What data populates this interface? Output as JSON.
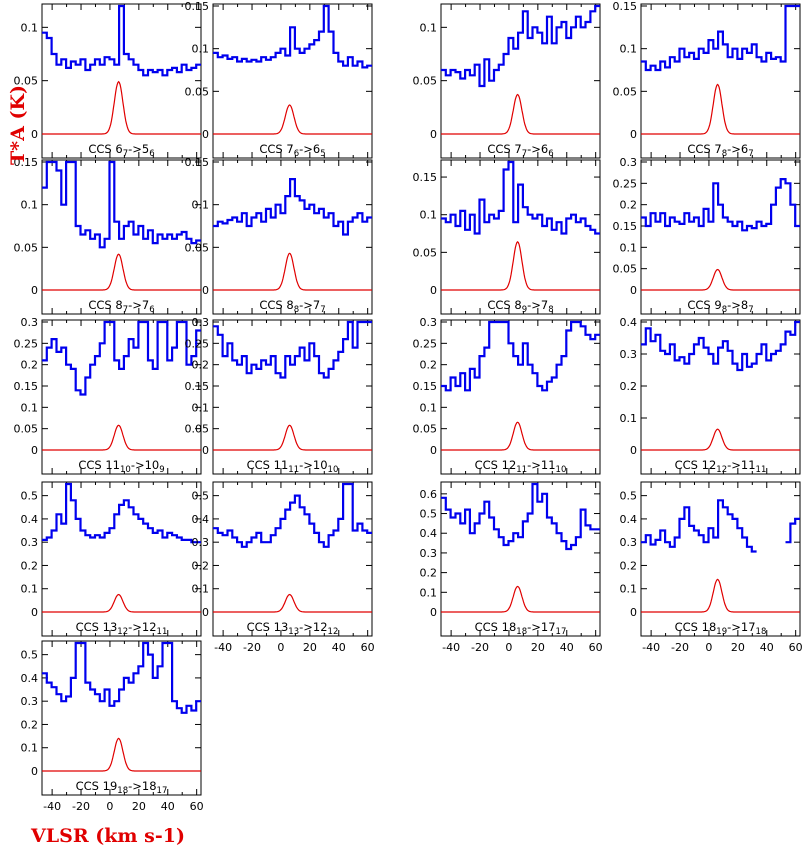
{
  "chart_data": {
    "type": "line",
    "ylabel": "T*A (K)",
    "xlabel": "VLSR (km s-1)",
    "xlim": [
      -47,
      63
    ],
    "xticks": [
      -40,
      -20,
      0,
      20,
      40,
      60
    ],
    "colors": {
      "observed": "#0000ee",
      "model": "#e00000"
    },
    "panels": [
      {
        "label": "CCS 67->56",
        "t": [
          "CCS 6",
          "7",
          "->5",
          "6"
        ],
        "ylim": [
          -0.01,
          0.12
        ],
        "yticks": [
          0,
          0.05,
          0.1
        ],
        "model_peak": 0.049,
        "obs": [
          0.095,
          0.09,
          0.075,
          0.065,
          0.07,
          0.062,
          0.068,
          0.065,
          0.07,
          0.06,
          0.065,
          0.07,
          0.065,
          0.072,
          0.07,
          0.065,
          0.12,
          0.075,
          0.07,
          0.065,
          0.06,
          0.055,
          0.06,
          0.058,
          0.06,
          0.055,
          0.06,
          0.062,
          0.058,
          0.065,
          0.06,
          0.062,
          0.065
        ]
      },
      {
        "label": "CCS 76->65",
        "t": [
          "CCS 7",
          "6",
          "->6",
          "5"
        ],
        "ylim": [
          -0.01,
          0.15
        ],
        "yticks": [
          0,
          0.05,
          0.1,
          0.15
        ],
        "model_peak": 0.034,
        "obs": [
          0.095,
          0.09,
          0.092,
          0.088,
          0.09,
          0.085,
          0.088,
          0.085,
          0.087,
          0.085,
          0.09,
          0.087,
          0.09,
          0.095,
          0.1,
          0.092,
          0.125,
          0.1,
          0.095,
          0.1,
          0.105,
          0.11,
          0.12,
          0.15,
          0.12,
          0.095,
          0.085,
          0.08,
          0.09,
          0.08,
          0.085,
          0.078,
          0.08
        ]
      },
      {
        "label": "CCS 77->66",
        "t": [
          "CCS 7",
          "7",
          "->6",
          "6"
        ],
        "ylim": [
          -0.01,
          0.12
        ],
        "yticks": [
          0,
          0.05,
          0.1
        ],
        "model_peak": 0.037,
        "obs": [
          0.06,
          0.055,
          0.06,
          0.058,
          0.052,
          0.06,
          0.055,
          0.065,
          0.045,
          0.07,
          0.05,
          0.06,
          0.065,
          0.075,
          0.09,
          0.08,
          0.095,
          0.115,
          0.09,
          0.1,
          0.095,
          0.085,
          0.11,
          0.085,
          0.1,
          0.105,
          0.09,
          0.1,
          0.11,
          0.1,
          0.105,
          0.115,
          0.12
        ]
      },
      {
        "label": "CCS 78->67",
        "t": [
          "CCS 7",
          "8",
          "->6",
          "7"
        ],
        "ylim": [
          -0.01,
          0.15
        ],
        "yticks": [
          0,
          0.05,
          0.1,
          0.15
        ],
        "model_peak": 0.058,
        "obs": [
          0.085,
          0.075,
          0.08,
          0.075,
          0.085,
          0.078,
          0.09,
          0.085,
          0.1,
          0.09,
          0.095,
          0.088,
          0.1,
          0.095,
          0.11,
          0.1,
          0.12,
          0.105,
          0.09,
          0.1,
          0.088,
          0.1,
          0.095,
          0.105,
          0.09,
          0.085,
          0.095,
          0.088,
          0.09,
          0.085,
          0.15,
          0.15,
          0.15
        ]
      },
      {
        "label": "CCS 87->76",
        "t": [
          "CCS 8",
          "7",
          "->7",
          "6"
        ],
        "ylim": [
          -0.01,
          0.15
        ],
        "yticks": [
          0,
          0.05,
          0.1,
          0.15
        ],
        "model_peak": 0.042,
        "obs": [
          0.12,
          0.15,
          0.15,
          0.14,
          0.1,
          0.15,
          0.15,
          0.075,
          0.065,
          0.07,
          0.06,
          0.065,
          0.05,
          0.06,
          0.15,
          0.08,
          0.06,
          0.075,
          0.08,
          0.065,
          0.075,
          0.06,
          0.07,
          0.055,
          0.065,
          0.06,
          0.065,
          0.06,
          0.065,
          0.068,
          0.06,
          0.055,
          0.058
        ]
      },
      {
        "label": "CCS 88->77",
        "t": [
          "CCS 8",
          "8",
          "->7",
          "7"
        ],
        "ylim": [
          -0.01,
          0.15
        ],
        "yticks": [
          0,
          0.05,
          0.1,
          0.15
        ],
        "model_peak": 0.043,
        "obs": [
          0.075,
          0.08,
          0.078,
          0.082,
          0.085,
          0.08,
          0.09,
          0.075,
          0.085,
          0.09,
          0.08,
          0.095,
          0.085,
          0.1,
          0.09,
          0.11,
          0.13,
          0.11,
          0.105,
          0.095,
          0.1,
          0.09,
          0.095,
          0.085,
          0.09,
          0.075,
          0.08,
          0.065,
          0.08,
          0.085,
          0.09,
          0.08,
          0.085
        ]
      },
      {
        "label": "CCS 89->78",
        "t": [
          "CCS 8",
          "9",
          "->7",
          "8"
        ],
        "ylim": [
          -0.01,
          0.17
        ],
        "yticks": [
          0,
          0.05,
          0.1,
          0.15
        ],
        "model_peak": 0.064,
        "obs": [
          0.095,
          0.09,
          0.1,
          0.085,
          0.105,
          0.08,
          0.1,
          0.075,
          0.12,
          0.09,
          0.1,
          0.095,
          0.105,
          0.16,
          0.17,
          0.09,
          0.14,
          0.11,
          0.1,
          0.095,
          0.1,
          0.085,
          0.095,
          0.08,
          0.09,
          0.075,
          0.095,
          0.1,
          0.09,
          0.095,
          0.085,
          0.08,
          0.075
        ]
      },
      {
        "label": "CCS 98->87",
        "t": [
          "CCS 9",
          "8",
          "->8",
          "7"
        ],
        "ylim": [
          -0.01,
          0.3
        ],
        "yticks": [
          0,
          0.05,
          0.1,
          0.15,
          0.2,
          0.25,
          0.3
        ],
        "model_peak": 0.048,
        "obs": [
          0.17,
          0.15,
          0.18,
          0.16,
          0.18,
          0.15,
          0.17,
          0.16,
          0.155,
          0.18,
          0.16,
          0.17,
          0.15,
          0.19,
          0.16,
          0.25,
          0.2,
          0.17,
          0.16,
          0.15,
          0.16,
          0.14,
          0.15,
          0.145,
          0.16,
          0.15,
          0.155,
          0.2,
          0.24,
          0.26,
          0.25,
          0.2,
          0.15
        ]
      },
      {
        "label": "CCS 1110->109",
        "t": [
          "CCS 11",
          "10",
          "->10",
          "9"
        ],
        "ylim": [
          -0.02,
          0.3
        ],
        "yticks": [
          0,
          0.05,
          0.1,
          0.15,
          0.2,
          0.25,
          0.3
        ],
        "model_peak": 0.058,
        "obs": [
          0.21,
          0.24,
          0.26,
          0.23,
          0.24,
          0.2,
          0.19,
          0.14,
          0.13,
          0.17,
          0.2,
          0.22,
          0.25,
          0.3,
          0.3,
          0.21,
          0.19,
          0.22,
          0.26,
          0.24,
          0.3,
          0.3,
          0.21,
          0.19,
          0.3,
          0.3,
          0.21,
          0.24,
          0.3,
          0.3,
          0.2,
          0.22,
          0.28
        ]
      },
      {
        "label": "CCS 1111->1010",
        "t": [
          "CCS 11",
          "11",
          "->10",
          "10"
        ],
        "ylim": [
          -0.02,
          0.3
        ],
        "yticks": [
          0,
          0.05,
          0.1,
          0.15,
          0.2,
          0.25,
          0.3
        ],
        "model_peak": 0.058,
        "obs": [
          0.29,
          0.27,
          0.22,
          0.25,
          0.21,
          0.2,
          0.22,
          0.18,
          0.2,
          0.19,
          0.21,
          0.2,
          0.22,
          0.18,
          0.17,
          0.22,
          0.2,
          0.22,
          0.24,
          0.21,
          0.25,
          0.22,
          0.18,
          0.17,
          0.19,
          0.21,
          0.23,
          0.26,
          0.3,
          0.24,
          0.3,
          0.3,
          0.3
        ]
      },
      {
        "label": "CCS 1211->1110",
        "t": [
          "CCS 12",
          "11",
          "->11",
          "10"
        ],
        "ylim": [
          -0.02,
          0.3
        ],
        "yticks": [
          0,
          0.05,
          0.1,
          0.15,
          0.2,
          0.25,
          0.3
        ],
        "model_peak": 0.065,
        "obs": [
          0.15,
          0.14,
          0.17,
          0.15,
          0.18,
          0.14,
          0.19,
          0.17,
          0.22,
          0.24,
          0.3,
          0.3,
          0.3,
          0.3,
          0.25,
          0.22,
          0.2,
          0.25,
          0.2,
          0.18,
          0.15,
          0.14,
          0.16,
          0.17,
          0.2,
          0.22,
          0.28,
          0.3,
          0.3,
          0.29,
          0.27,
          0.26,
          0.27
        ]
      },
      {
        "label": "CCS 1212->1111",
        "t": [
          "CCS 12",
          "12",
          "->11",
          "11"
        ],
        "ylim": [
          -0.02,
          0.4
        ],
        "yticks": [
          0,
          0.1,
          0.2,
          0.3,
          0.4
        ],
        "model_peak": 0.065,
        "obs": [
          0.33,
          0.38,
          0.34,
          0.36,
          0.31,
          0.3,
          0.33,
          0.28,
          0.29,
          0.27,
          0.3,
          0.33,
          0.35,
          0.32,
          0.3,
          0.27,
          0.32,
          0.34,
          0.31,
          0.27,
          0.25,
          0.3,
          0.26,
          0.27,
          0.3,
          0.33,
          0.28,
          0.3,
          0.31,
          0.33,
          0.37,
          0.36,
          0.4
        ]
      },
      {
        "label": "CCS 1312->1211",
        "t": [
          "CCS 13",
          "12",
          "->12",
          "11"
        ],
        "ylim": [
          -0.03,
          0.55
        ],
        "yticks": [
          0,
          0.1,
          0.2,
          0.3,
          0.4,
          0.5
        ],
        "model_peak": 0.075,
        "obs": [
          0.31,
          0.32,
          0.35,
          0.42,
          0.38,
          0.55,
          0.48,
          0.4,
          0.35,
          0.33,
          0.32,
          0.33,
          0.32,
          0.34,
          0.36,
          0.42,
          0.46,
          0.48,
          0.45,
          0.42,
          0.4,
          0.38,
          0.36,
          0.34,
          0.35,
          0.32,
          0.34,
          0.33,
          0.32,
          0.31,
          0.31,
          0.3,
          0.3
        ]
      },
      {
        "label": "CCS 1313->1212",
        "t": [
          "CCS 13",
          "13",
          "->12",
          "12"
        ],
        "ylim": [
          -0.03,
          0.55
        ],
        "yticks": [
          0,
          0.1,
          0.2,
          0.3,
          0.4,
          0.5
        ],
        "model_peak": 0.075,
        "obs": [
          0.36,
          0.34,
          0.33,
          0.35,
          0.32,
          0.3,
          0.28,
          0.3,
          0.32,
          0.34,
          0.3,
          0.3,
          0.33,
          0.36,
          0.4,
          0.44,
          0.47,
          0.5,
          0.45,
          0.42,
          0.38,
          0.34,
          0.3,
          0.28,
          0.33,
          0.35,
          0.4,
          0.55,
          0.55,
          0.35,
          0.38,
          0.35,
          0.34
        ]
      },
      {
        "label": "CCS 1818->1717",
        "t": [
          "CCS 18",
          "18",
          "->17",
          "17"
        ],
        "ylim": [
          -0.03,
          0.65
        ],
        "yticks": [
          0,
          0.1,
          0.2,
          0.3,
          0.4,
          0.5,
          0.6
        ],
        "model_peak": 0.13,
        "obs": [
          0.58,
          0.52,
          0.48,
          0.5,
          0.45,
          0.52,
          0.4,
          0.45,
          0.5,
          0.56,
          0.48,
          0.42,
          0.38,
          0.34,
          0.36,
          0.4,
          0.38,
          0.46,
          0.5,
          0.65,
          0.56,
          0.6,
          0.48,
          0.45,
          0.4,
          0.36,
          0.32,
          0.34,
          0.38,
          0.52,
          0.44,
          0.42,
          0.42
        ]
      },
      {
        "label": "CCS 1819->1718",
        "t": [
          "CCS 18",
          "19",
          "->17",
          "18"
        ],
        "ylim": [
          -0.03,
          0.55
        ],
        "yticks": [
          0,
          0.1,
          0.2,
          0.3,
          0.4,
          0.5
        ],
        "model_peak": 0.14,
        "obs": [
          0.3,
          0.33,
          0.29,
          0.31,
          0.35,
          0.3,
          0.28,
          0.32,
          0.4,
          0.45,
          0.37,
          0.35,
          0.33,
          0.3,
          0.36,
          0.32,
          0.48,
          0.45,
          0.42,
          0.4,
          0.36,
          0.32,
          0.28,
          0.26,
          null,
          null,
          null,
          null,
          null,
          null,
          0.3,
          0.38,
          0.4
        ]
      },
      {
        "label": "CCS 1918->1817",
        "t": [
          "CCS 19",
          "18",
          "->18",
          "17"
        ],
        "ylim": [
          -0.03,
          0.55
        ],
        "yticks": [
          0,
          0.1,
          0.2,
          0.3,
          0.4,
          0.5
        ],
        "model_peak": 0.14,
        "obs": [
          0.42,
          0.38,
          0.36,
          0.33,
          0.3,
          0.32,
          0.4,
          0.55,
          0.55,
          0.38,
          0.35,
          0.33,
          0.3,
          0.35,
          0.28,
          0.3,
          0.35,
          0.4,
          0.38,
          0.42,
          0.45,
          0.55,
          0.5,
          0.4,
          0.45,
          0.55,
          0.55,
          0.3,
          0.27,
          0.25,
          0.28,
          0.26,
          0.3
        ]
      }
    ]
  }
}
